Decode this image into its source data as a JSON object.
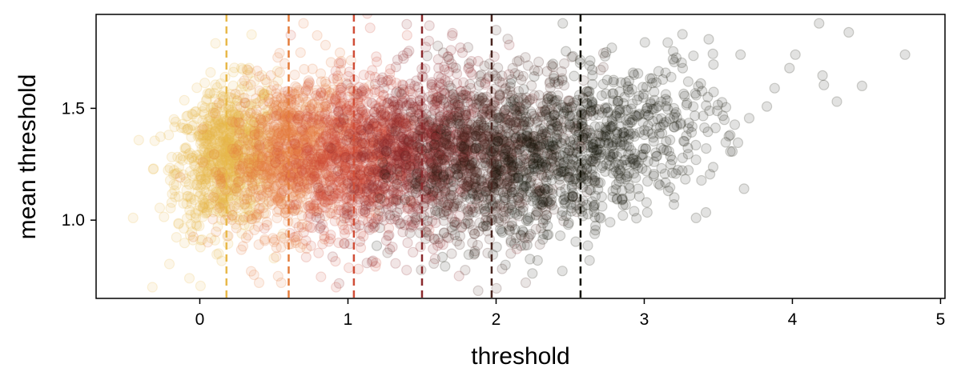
{
  "chart_data": {
    "type": "scatter",
    "title": "",
    "xlabel": "threshold",
    "ylabel": "mean threshold",
    "xlim": [
      -0.7,
      5.03
    ],
    "ylim": [
      0.65,
      1.92
    ],
    "xticks": [
      0,
      1,
      2,
      3,
      4,
      5
    ],
    "yticks": [
      1.0,
      1.5
    ],
    "ytick_labels": [
      "1.0",
      "1.5"
    ],
    "xtick_labels": [
      "0",
      "1",
      "2",
      "3",
      "4",
      "5"
    ],
    "grid": false,
    "legend": "none",
    "marker_opacity": 0.12,
    "series": [
      {
        "color": "#e8b94a",
        "x_center": 0.18,
        "x_spread": 0.17,
        "y_center": 1.28,
        "y_spread": 0.16,
        "threshold_line": 0.18,
        "points": [
          [
            0.05,
            1.45
          ],
          [
            0.3,
            1.6
          ],
          [
            0.12,
            1.05
          ],
          [
            0.4,
            1.25
          ],
          [
            -0.05,
            1.2
          ],
          [
            0.25,
            1.35
          ]
        ],
        "outliers": [
          [
            -0.45,
            1.01
          ],
          [
            -0.32,
            0.7
          ],
          [
            -0.07,
            0.74
          ],
          [
            0.35,
            1.83
          ],
          [
            0.5,
            0.83
          ]
        ]
      },
      {
        "color": "#e47e3e",
        "x_center": 0.62,
        "x_spread": 0.2,
        "y_center": 1.3,
        "y_spread": 0.17,
        "threshold_line": 0.6,
        "points": [
          [
            0.5,
            1.5
          ],
          [
            0.75,
            1.35
          ],
          [
            0.6,
            1.05
          ],
          [
            0.45,
            1.2
          ]
        ],
        "outliers": [
          [
            0.4,
            0.72
          ],
          [
            0.55,
            0.72
          ],
          [
            0.7,
            1.88
          ]
        ]
      },
      {
        "color": "#d04e38",
        "x_center": 1.05,
        "x_spread": 0.22,
        "y_center": 1.3,
        "y_spread": 0.17,
        "threshold_line": 1.04,
        "points": [
          [
            1.0,
            1.55
          ],
          [
            1.2,
            1.3
          ],
          [
            0.9,
            1.1
          ],
          [
            1.1,
            1.0
          ]
        ],
        "outliers": [
          [
            1.15,
            1.86
          ],
          [
            0.92,
            0.7
          ]
        ]
      },
      {
        "color": "#8b2a2d",
        "x_center": 1.5,
        "x_spread": 0.25,
        "y_center": 1.3,
        "y_spread": 0.18,
        "threshold_line": 1.5,
        "points": [
          [
            1.45,
            1.6
          ],
          [
            1.6,
            1.2
          ],
          [
            1.35,
            1.05
          ]
        ],
        "outliers": [
          [
            1.3,
            0.88
          ],
          [
            1.55,
            1.87
          ],
          [
            1.75,
            0.75
          ]
        ]
      },
      {
        "color": "#4a2620",
        "x_center": 1.98,
        "x_spread": 0.3,
        "y_center": 1.3,
        "y_spread": 0.18,
        "threshold_line": 1.97,
        "points": [
          [
            1.9,
            1.65
          ],
          [
            2.1,
            1.3
          ],
          [
            1.8,
            1.05
          ]
        ],
        "outliers": [
          [
            1.7,
            0.85
          ],
          [
            2.0,
            1.85
          ],
          [
            2.2,
            0.72
          ]
        ]
      },
      {
        "color": "#141307",
        "x_center": 2.6,
        "x_spread": 0.45,
        "y_center": 1.3,
        "y_spread": 0.17,
        "threshold_line": 2.57,
        "points": [
          [
            2.5,
            1.35
          ],
          [
            2.9,
            1.45
          ],
          [
            3.2,
            1.5
          ],
          [
            2.2,
            1.15
          ]
        ],
        "outliers": [
          [
            4.76,
            1.74
          ],
          [
            4.47,
            1.6
          ],
          [
            4.38,
            1.84
          ],
          [
            4.3,
            1.53
          ],
          [
            4.18,
            1.88
          ],
          [
            3.98,
            1.68
          ],
          [
            3.88,
            1.59
          ],
          [
            3.2,
            1.07
          ],
          [
            3.35,
            1.01
          ],
          [
            2.28,
            0.82
          ],
          [
            2.45,
            1.88
          ],
          [
            3.65,
            1.74
          ],
          [
            4.02,
            1.74
          ]
        ]
      }
    ]
  }
}
